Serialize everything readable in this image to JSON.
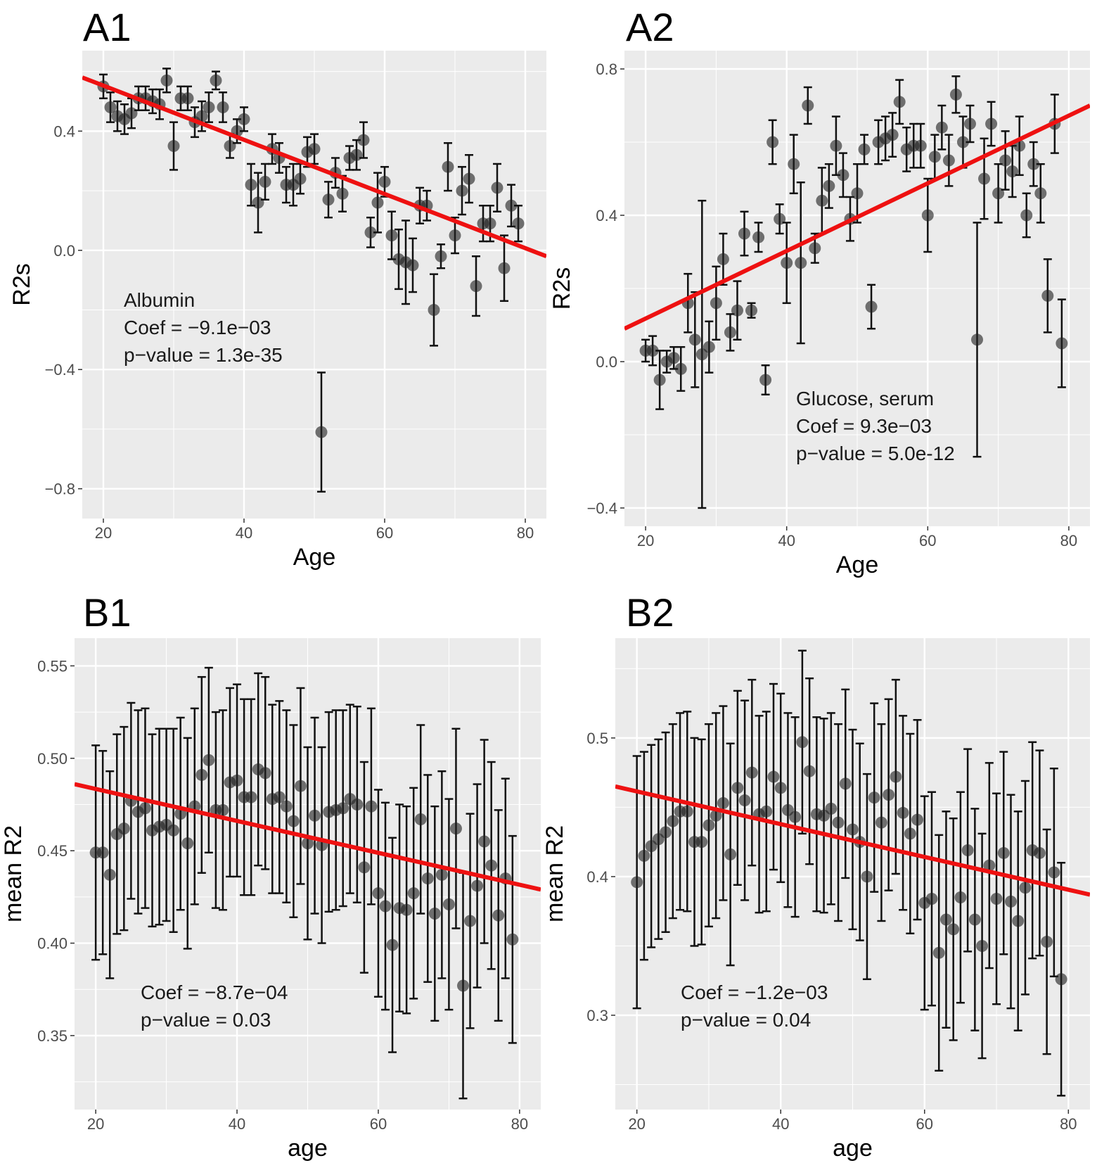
{
  "chart_data": [
    {
      "id": "A1",
      "type": "scatter",
      "panel_label": "A1",
      "xlabel": "Age",
      "ylabel": "R2s",
      "xlim": [
        17,
        83
      ],
      "ylim": [
        -0.9,
        0.67
      ],
      "xticks": [
        20,
        40,
        60,
        80
      ],
      "yticks": [
        -0.8,
        -0.4,
        0.0,
        0.4
      ],
      "ytick_labels": [
        "−0.8",
        "−0.4",
        "0.0",
        "0.4"
      ],
      "grid": true,
      "annotation": [
        "Albumin",
        "Coef = −9.1e−03",
        "p−value = 1.3e-35"
      ],
      "fit_line": {
        "x": [
          17,
          83
        ],
        "y": [
          0.58,
          -0.02
        ]
      },
      "points": [
        [
          20,
          0.55,
          0.04
        ],
        [
          21,
          0.48,
          0.05
        ],
        [
          22,
          0.45,
          0.05
        ],
        [
          23,
          0.44,
          0.05
        ],
        [
          24,
          0.46,
          0.05
        ],
        [
          25,
          0.51,
          0.04
        ],
        [
          26,
          0.51,
          0.04
        ],
        [
          27,
          0.5,
          0.04
        ],
        [
          28,
          0.49,
          0.05
        ],
        [
          29,
          0.57,
          0.04
        ],
        [
          30,
          0.35,
          0.08
        ],
        [
          31,
          0.51,
          0.04
        ],
        [
          32,
          0.51,
          0.04
        ],
        [
          33,
          0.43,
          0.05
        ],
        [
          34,
          0.45,
          0.05
        ],
        [
          35,
          0.48,
          0.05
        ],
        [
          36,
          0.57,
          0.03
        ],
        [
          37,
          0.48,
          0.05
        ],
        [
          38,
          0.35,
          0.04
        ],
        [
          39,
          0.4,
          0.04
        ],
        [
          40,
          0.44,
          0.04
        ],
        [
          41,
          0.22,
          0.07
        ],
        [
          42,
          0.16,
          0.1
        ],
        [
          43,
          0.23,
          0.06
        ],
        [
          44,
          0.34,
          0.05
        ],
        [
          45,
          0.31,
          0.05
        ],
        [
          46,
          0.22,
          0.06
        ],
        [
          47,
          0.22,
          0.07
        ],
        [
          48,
          0.24,
          0.05
        ],
        [
          49,
          0.33,
          0.05
        ],
        [
          50,
          0.34,
          0.05
        ],
        [
          51,
          -0.61,
          0.2
        ],
        [
          52,
          0.17,
          0.06
        ],
        [
          53,
          0.26,
          0.05
        ],
        [
          54,
          0.19,
          0.06
        ],
        [
          55,
          0.31,
          0.04
        ],
        [
          56,
          0.32,
          0.05
        ],
        [
          57,
          0.37,
          0.06
        ],
        [
          58,
          0.06,
          0.05
        ],
        [
          59,
          0.16,
          0.1
        ],
        [
          60,
          0.23,
          0.05
        ],
        [
          61,
          0.05,
          0.08
        ],
        [
          62,
          -0.03,
          0.1
        ],
        [
          63,
          -0.04,
          0.14
        ],
        [
          64,
          -0.05,
          0.09
        ],
        [
          65,
          0.15,
          0.06
        ],
        [
          66,
          0.15,
          0.05
        ],
        [
          67,
          -0.2,
          0.12
        ],
        [
          68,
          -0.02,
          0.04
        ],
        [
          69,
          0.28,
          0.08
        ],
        [
          70,
          0.05,
          0.06
        ],
        [
          71,
          0.2,
          0.08
        ],
        [
          72,
          0.24,
          0.08
        ],
        [
          73,
          -0.12,
          0.1
        ],
        [
          74,
          0.09,
          0.06
        ],
        [
          75,
          0.09,
          0.06
        ],
        [
          76,
          0.21,
          0.08
        ],
        [
          77,
          -0.06,
          0.11
        ],
        [
          78,
          0.15,
          0.07
        ],
        [
          79,
          0.09,
          0.06
        ]
      ]
    },
    {
      "id": "A2",
      "type": "scatter",
      "panel_label": "A2",
      "xlabel": "Age",
      "ylabel": "R2s",
      "xlim": [
        17,
        83
      ],
      "ylim": [
        -0.45,
        0.85
      ],
      "xticks": [
        20,
        40,
        60,
        80
      ],
      "yticks": [
        -0.4,
        0.0,
        0.4,
        0.8
      ],
      "ytick_labels": [
        "−0.4",
        "0.0",
        "0.4",
        "0.8"
      ],
      "grid": true,
      "annotation": [
        "Glucose, serum",
        "Coef = 9.3e−03",
        "p−value = 5.0e-12"
      ],
      "fit_line": {
        "x": [
          17,
          83
        ],
        "y": [
          0.09,
          0.7
        ]
      },
      "points": [
        [
          20,
          0.03,
          0.03
        ],
        [
          21,
          0.03,
          0.04
        ],
        [
          22,
          -0.05,
          0.08
        ],
        [
          23,
          0.0,
          0.03
        ],
        [
          24,
          0.01,
          0.03
        ],
        [
          25,
          -0.02,
          0.06
        ],
        [
          26,
          0.16,
          0.08
        ],
        [
          27,
          0.06,
          0.13
        ],
        [
          28,
          0.02,
          0.42
        ],
        [
          29,
          0.04,
          0.07
        ],
        [
          30,
          0.16,
          0.1
        ],
        [
          31,
          0.28,
          0.07
        ],
        [
          32,
          0.08,
          0.05
        ],
        [
          33,
          0.14,
          0.08
        ],
        [
          34,
          0.35,
          0.06
        ],
        [
          35,
          0.14,
          0.02
        ],
        [
          36,
          0.34,
          0.04
        ],
        [
          37,
          -0.05,
          0.04
        ],
        [
          38,
          0.6,
          0.06
        ],
        [
          39,
          0.39,
          0.04
        ],
        [
          40,
          0.27,
          0.11
        ],
        [
          41,
          0.54,
          0.08
        ],
        [
          42,
          0.27,
          0.22
        ],
        [
          43,
          0.7,
          0.05
        ],
        [
          44,
          0.31,
          0.04
        ],
        [
          45,
          0.44,
          0.09
        ],
        [
          46,
          0.48,
          0.06
        ],
        [
          47,
          0.59,
          0.08
        ],
        [
          48,
          0.51,
          0.06
        ],
        [
          49,
          0.39,
          0.06
        ],
        [
          50,
          0.46,
          0.08
        ],
        [
          51,
          0.58,
          0.04
        ],
        [
          52,
          0.15,
          0.06
        ],
        [
          53,
          0.6,
          0.06
        ],
        [
          54,
          0.61,
          0.06
        ],
        [
          55,
          0.62,
          0.06
        ],
        [
          56,
          0.71,
          0.06
        ],
        [
          57,
          0.58,
          0.06
        ],
        [
          58,
          0.59,
          0.06
        ],
        [
          59,
          0.59,
          0.06
        ],
        [
          60,
          0.4,
          0.1
        ],
        [
          61,
          0.56,
          0.06
        ],
        [
          62,
          0.64,
          0.06
        ],
        [
          63,
          0.55,
          0.07
        ],
        [
          64,
          0.73,
          0.05
        ],
        [
          65,
          0.6,
          0.07
        ],
        [
          66,
          0.65,
          0.05
        ],
        [
          67,
          0.06,
          0.32
        ],
        [
          68,
          0.5,
          0.11
        ],
        [
          69,
          0.65,
          0.06
        ],
        [
          70,
          0.46,
          0.08
        ],
        [
          71,
          0.55,
          0.08
        ],
        [
          72,
          0.52,
          0.07
        ],
        [
          73,
          0.59,
          0.08
        ],
        [
          74,
          0.4,
          0.06
        ],
        [
          75,
          0.54,
          0.06
        ],
        [
          76,
          0.46,
          0.08
        ],
        [
          77,
          0.18,
          0.1
        ],
        [
          78,
          0.65,
          0.08
        ],
        [
          79,
          0.05,
          0.12
        ]
      ]
    },
    {
      "id": "B1",
      "type": "scatter",
      "panel_label": "B1",
      "xlabel": "age",
      "ylabel": "mean R2",
      "xlim": [
        17,
        83
      ],
      "ylim": [
        0.31,
        0.565
      ],
      "xticks": [
        20,
        40,
        60,
        80
      ],
      "yticks": [
        0.35,
        0.4,
        0.45,
        0.5,
        0.55
      ],
      "ytick_labels": [
        "0.35",
        "0.40",
        "0.45",
        "0.50",
        "0.55"
      ],
      "grid": true,
      "annotation": [
        "Coef = −8.7e−04",
        "p−value = 0.03"
      ],
      "fit_line": {
        "x": [
          17,
          83
        ],
        "y": [
          0.486,
          0.429
        ]
      },
      "points": [
        [
          20,
          0.449,
          0.058
        ],
        [
          21,
          0.449,
          0.055
        ],
        [
          22,
          0.437,
          0.056
        ],
        [
          23,
          0.459,
          0.054
        ],
        [
          24,
          0.462,
          0.055
        ],
        [
          25,
          0.477,
          0.053
        ],
        [
          26,
          0.471,
          0.055
        ],
        [
          27,
          0.473,
          0.054
        ],
        [
          28,
          0.461,
          0.052
        ],
        [
          29,
          0.463,
          0.053
        ],
        [
          30,
          0.464,
          0.052
        ],
        [
          31,
          0.461,
          0.055
        ],
        [
          32,
          0.47,
          0.052
        ],
        [
          33,
          0.454,
          0.057
        ],
        [
          34,
          0.474,
          0.053
        ],
        [
          35,
          0.491,
          0.053
        ],
        [
          36,
          0.499,
          0.05
        ],
        [
          37,
          0.472,
          0.053
        ],
        [
          38,
          0.472,
          0.054
        ],
        [
          39,
          0.487,
          0.051
        ],
        [
          40,
          0.488,
          0.052
        ],
        [
          41,
          0.479,
          0.053
        ],
        [
          42,
          0.479,
          0.053
        ],
        [
          43,
          0.494,
          0.052
        ],
        [
          44,
          0.492,
          0.052
        ],
        [
          45,
          0.478,
          0.051
        ],
        [
          46,
          0.479,
          0.052
        ],
        [
          47,
          0.474,
          0.052
        ],
        [
          48,
          0.466,
          0.052
        ],
        [
          49,
          0.485,
          0.053
        ],
        [
          50,
          0.454,
          0.052
        ],
        [
          51,
          0.469,
          0.053
        ],
        [
          52,
          0.453,
          0.053
        ],
        [
          53,
          0.471,
          0.054
        ],
        [
          54,
          0.472,
          0.054
        ],
        [
          55,
          0.473,
          0.053
        ],
        [
          56,
          0.478,
          0.051
        ],
        [
          57,
          0.475,
          0.053
        ],
        [
          58,
          0.441,
          0.057
        ],
        [
          59,
          0.474,
          0.053
        ],
        [
          60,
          0.427,
          0.056
        ],
        [
          61,
          0.42,
          0.056
        ],
        [
          62,
          0.399,
          0.058
        ],
        [
          63,
          0.419,
          0.056
        ],
        [
          64,
          0.418,
          0.056
        ],
        [
          65,
          0.427,
          0.057
        ],
        [
          66,
          0.467,
          0.051
        ],
        [
          67,
          0.435,
          0.056
        ],
        [
          68,
          0.416,
          0.058
        ],
        [
          69,
          0.437,
          0.056
        ],
        [
          70,
          0.421,
          0.057
        ],
        [
          71,
          0.462,
          0.054
        ],
        [
          72,
          0.377,
          0.061
        ],
        [
          73,
          0.412,
          0.058
        ],
        [
          74,
          0.431,
          0.055
        ],
        [
          75,
          0.455,
          0.055
        ],
        [
          76,
          0.442,
          0.056
        ],
        [
          77,
          0.415,
          0.057
        ],
        [
          78,
          0.435,
          0.054
        ],
        [
          79,
          0.402,
          0.056
        ]
      ]
    },
    {
      "id": "B2",
      "type": "scatter",
      "panel_label": "B2",
      "xlabel": "age",
      "ylabel": "mean R2",
      "xlim": [
        17,
        83
      ],
      "ylim": [
        0.232,
        0.572
      ],
      "xticks": [
        20,
        40,
        60,
        80
      ],
      "yticks": [
        0.3,
        0.4,
        0.5
      ],
      "ytick_labels": [
        "0.3",
        "0.4",
        "0.5"
      ],
      "grid": true,
      "annotation": [
        "Coef = −1.2e−03",
        "p−value = 0.04"
      ],
      "fit_line": {
        "x": [
          17,
          83
        ],
        "y": [
          0.465,
          0.387
        ]
      },
      "points": [
        [
          20,
          0.396,
          0.091
        ],
        [
          21,
          0.415,
          0.075
        ],
        [
          22,
          0.422,
          0.073
        ],
        [
          23,
          0.427,
          0.072
        ],
        [
          24,
          0.432,
          0.072
        ],
        [
          25,
          0.44,
          0.07
        ],
        [
          26,
          0.447,
          0.071
        ],
        [
          27,
          0.447,
          0.072
        ],
        [
          28,
          0.425,
          0.075
        ],
        [
          29,
          0.425,
          0.074
        ],
        [
          30,
          0.437,
          0.073
        ],
        [
          31,
          0.444,
          0.074
        ],
        [
          32,
          0.453,
          0.07
        ],
        [
          33,
          0.416,
          0.08
        ],
        [
          34,
          0.464,
          0.07
        ],
        [
          35,
          0.455,
          0.072
        ],
        [
          36,
          0.475,
          0.067
        ],
        [
          37,
          0.445,
          0.071
        ],
        [
          38,
          0.447,
          0.072
        ],
        [
          39,
          0.472,
          0.067
        ],
        [
          40,
          0.464,
          0.068
        ],
        [
          41,
          0.448,
          0.07
        ],
        [
          42,
          0.443,
          0.072
        ],
        [
          43,
          0.497,
          0.066
        ],
        [
          44,
          0.476,
          0.067
        ],
        [
          45,
          0.445,
          0.07
        ],
        [
          46,
          0.444,
          0.07
        ],
        [
          47,
          0.449,
          0.069
        ],
        [
          48,
          0.439,
          0.071
        ],
        [
          49,
          0.467,
          0.068
        ],
        [
          50,
          0.434,
          0.072
        ],
        [
          51,
          0.425,
          0.071
        ],
        [
          52,
          0.4,
          0.074
        ],
        [
          53,
          0.457,
          0.068
        ],
        [
          54,
          0.439,
          0.071
        ],
        [
          55,
          0.459,
          0.069
        ],
        [
          56,
          0.472,
          0.07
        ],
        [
          57,
          0.446,
          0.07
        ],
        [
          58,
          0.431,
          0.072
        ],
        [
          59,
          0.441,
          0.072
        ],
        [
          60,
          0.381,
          0.077
        ],
        [
          61,
          0.384,
          0.077
        ],
        [
          62,
          0.345,
          0.085
        ],
        [
          63,
          0.369,
          0.078
        ],
        [
          64,
          0.362,
          0.08
        ],
        [
          65,
          0.385,
          0.076
        ],
        [
          66,
          0.419,
          0.073
        ],
        [
          67,
          0.369,
          0.08
        ],
        [
          68,
          0.35,
          0.081
        ],
        [
          69,
          0.408,
          0.074
        ],
        [
          70,
          0.384,
          0.076
        ],
        [
          71,
          0.417,
          0.073
        ],
        [
          72,
          0.382,
          0.077
        ],
        [
          73,
          0.368,
          0.079
        ],
        [
          74,
          0.392,
          0.077
        ],
        [
          75,
          0.419,
          0.078
        ],
        [
          76,
          0.417,
          0.074
        ],
        [
          77,
          0.353,
          0.081
        ],
        [
          78,
          0.403,
          0.075
        ],
        [
          79,
          0.326,
          0.084
        ]
      ]
    }
  ]
}
